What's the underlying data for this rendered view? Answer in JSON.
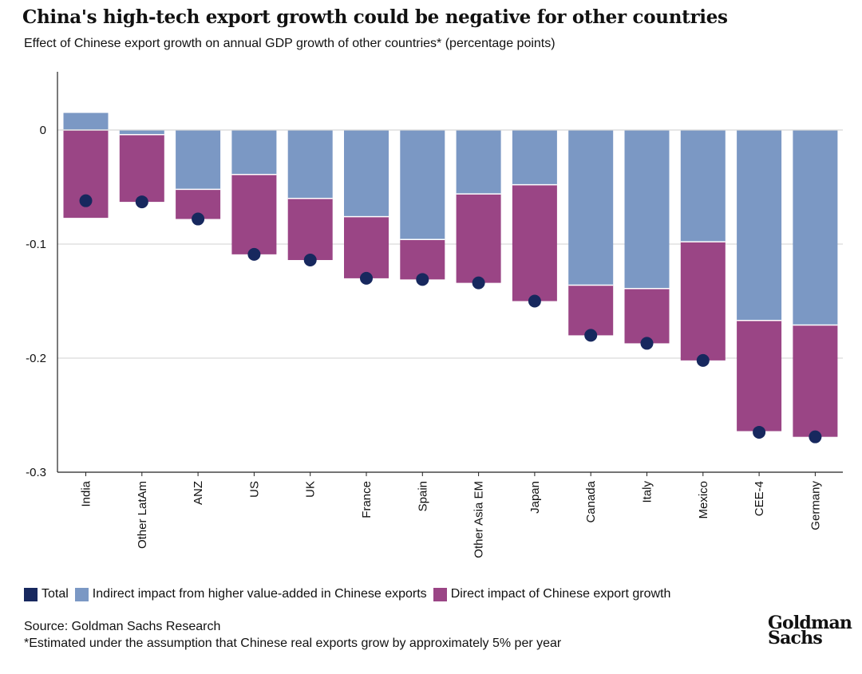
{
  "header": {
    "title": "China's high-tech export growth could be negative for other countries",
    "subtitle": "Effect of Chinese export growth on annual GDP growth of other countries* (percentage points)"
  },
  "legend": {
    "items": [
      {
        "label": "Total",
        "color": "#17285e"
      },
      {
        "label": "Indirect impact from higher value-added in Chinese exports",
        "color": "#7b98c4"
      },
      {
        "label": "Direct impact of Chinese export growth",
        "color": "#9a4585"
      }
    ]
  },
  "footer": {
    "source": "Source: Goldman Sachs Research",
    "note": "*Estimated under the assumption that Chinese real exports grow by approximately 5% per year",
    "logo_line1": "Goldman",
    "logo_line2": "Sachs"
  },
  "chart_data": {
    "type": "bar",
    "stacked": true,
    "categories": [
      "India",
      "Other LatAm",
      "ANZ",
      "US",
      "UK",
      "France",
      "Spain",
      "Other Asia EM",
      "Japan",
      "Canada",
      "Italy",
      "Mexico",
      "CEE-4",
      "Germany"
    ],
    "series": [
      {
        "name": "Indirect impact from higher value-added in Chinese exports",
        "color": "#7b98c4",
        "values": [
          0.015,
          -0.004,
          -0.052,
          -0.039,
          -0.06,
          -0.076,
          -0.096,
          -0.056,
          -0.048,
          -0.136,
          -0.139,
          -0.098,
          -0.167,
          -0.171
        ]
      },
      {
        "name": "Direct impact of Chinese export growth",
        "color": "#9a4585",
        "values": [
          -0.077,
          -0.059,
          -0.026,
          -0.07,
          -0.054,
          -0.054,
          -0.035,
          -0.078,
          -0.102,
          -0.044,
          -0.048,
          -0.104,
          -0.097,
          -0.098
        ]
      },
      {
        "name": "Total",
        "color": "#17285e",
        "marker": "dot",
        "values": [
          -0.062,
          -0.063,
          -0.078,
          -0.109,
          -0.114,
          -0.13,
          -0.131,
          -0.134,
          -0.15,
          -0.18,
          -0.187,
          -0.202,
          -0.265,
          -0.269
        ]
      }
    ],
    "yticks": [
      0,
      -0.1,
      -0.2,
      -0.3
    ],
    "ytick_labels": [
      "0",
      "-0.1",
      "-0.2",
      "-0.3"
    ],
    "ylim": [
      -0.3,
      0.05
    ],
    "grid": true,
    "legend_position": "bottom-left"
  }
}
